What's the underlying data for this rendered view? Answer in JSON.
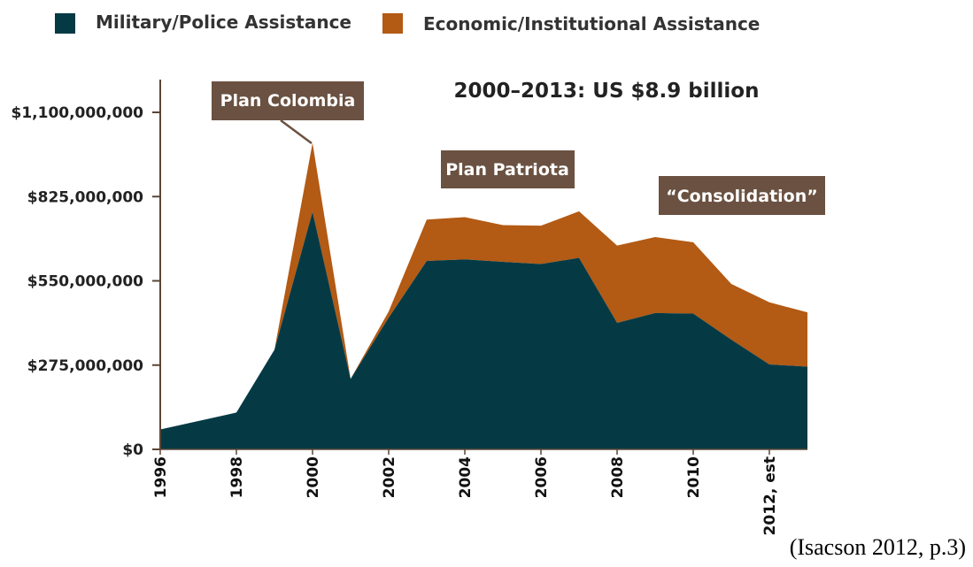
{
  "colors": {
    "military": "#053A45",
    "economic": "#B35A14",
    "callout_bg": "#6A5141",
    "axis": "#5a4636"
  },
  "chart_data": {
    "type": "area",
    "stacked": true,
    "title": "2000–2013: US $8.9 billion",
    "x": [
      1996,
      1998,
      1999,
      2000,
      2001,
      2002,
      2003,
      2004,
      2005,
      2006,
      2007,
      2008,
      2009,
      2010,
      2011,
      2012,
      2013
    ],
    "x_tick_labels": [
      "1996",
      "1998",
      "2000",
      "2002",
      "2004",
      "2006",
      "2008",
      "2010",
      "2012, est"
    ],
    "x_tick_values": [
      1996,
      1998,
      2000,
      2002,
      2004,
      2006,
      2008,
      2010,
      2012
    ],
    "ylim": [
      0,
      1100000000
    ],
    "y_tick_values": [
      0,
      275000000,
      550000000,
      825000000,
      1100000000
    ],
    "y_tick_labels": [
      "$0",
      "$275,000,000",
      "$550,000,000",
      "$825,000,000",
      "$1,100,000,000"
    ],
    "series": [
      {
        "name": "Military/Police Assistance",
        "values": [
          65000000,
          120000000,
          325000000,
          775000000,
          230000000,
          430000000,
          615000000,
          620000000,
          612000000,
          605000000,
          625000000,
          413000000,
          445000000,
          443000000,
          358000000,
          277000000,
          270000000
        ]
      },
      {
        "name": "Economic/Institutional Assistance",
        "values": [
          0,
          0,
          0,
          225000000,
          0,
          20000000,
          135000000,
          138000000,
          120000000,
          125000000,
          152000000,
          252000000,
          248000000,
          233000000,
          182000000,
          203000000,
          177000000
        ]
      }
    ],
    "legend_position": "top",
    "annotations": [
      {
        "label": "Plan Colombia",
        "points_to": 2000
      },
      {
        "label": "Plan Patriota"
      },
      {
        "label": "“Consolidation”"
      }
    ],
    "grid": false
  },
  "legend": {
    "military_label": "Military/Police Assistance",
    "economic_label": "Economic/Institutional Assistance"
  },
  "citation": "(Isacson 2012, p.3)"
}
